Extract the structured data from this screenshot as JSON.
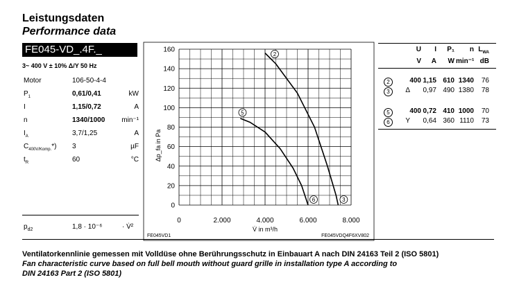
{
  "header": {
    "title": "Leistungsdaten",
    "subtitle": "Performance data",
    "model": "FE045-VD_.4F._",
    "supply": "3~ 400 V ± 10% Δ/Y 50 Hz"
  },
  "params": [
    {
      "label": "Motor",
      "value": "106-50-4-4",
      "unit": "",
      "bold": false
    },
    {
      "label": "P",
      "sub": "1",
      "value": "0,61/0,41",
      "unit": "kW",
      "bold": true
    },
    {
      "label": "I",
      "sub": "",
      "value": "1,15/0,72",
      "unit": "A",
      "bold": true
    },
    {
      "label": "n",
      "sub": "",
      "value": "1340/1000",
      "unit": "min⁻¹",
      "bold": true
    },
    {
      "label": "I",
      "sub": "A",
      "value": "3,7/1,25",
      "unit": "A",
      "bold": false
    },
    {
      "label": "C",
      "sub": "400V/Komp.",
      "suffix": "*)",
      "value": "3",
      "unit": "µF",
      "bold": false
    },
    {
      "label": "t",
      "sub": "R",
      "value": "60",
      "unit": "°C",
      "bold": false
    }
  ],
  "pd2": {
    "label": "p",
    "sub": "d2",
    "value": "1,8 · 10⁻⁶",
    "unit": "· V̇²"
  },
  "table": {
    "headers": [
      "U",
      "I",
      "P₁",
      "n",
      "L"
    ],
    "header_sub": "WA",
    "units": [
      "V",
      "A",
      "W",
      "min⁻¹",
      "dB"
    ],
    "rows": [
      {
        "marker": "2",
        "conn": "",
        "values": [
          "400",
          "1,15",
          "610",
          "1340",
          "76"
        ],
        "bold": true
      },
      {
        "marker": "3",
        "conn": "Δ",
        "values": [
          "",
          "0,97",
          "490",
          "1380",
          "78"
        ],
        "bold": false
      },
      {
        "marker": "5",
        "conn": "",
        "values": [
          "400",
          "0,72",
          "410",
          "1000",
          "70"
        ],
        "bold": true
      },
      {
        "marker": "6",
        "conn": "Y",
        "values": [
          "",
          "0,64",
          "360",
          "1110",
          "73"
        ],
        "bold": false
      }
    ]
  },
  "chart_data": {
    "type": "line",
    "xlabel": "V̇ in m³/h",
    "ylabel": "Δp_fa in Pa",
    "xlim": [
      0,
      8000
    ],
    "ylim": [
      0,
      160
    ],
    "xticks": [
      "0",
      "2.000",
      "4.000",
      "6.000",
      "8.000"
    ],
    "yticks": [
      "0",
      "20",
      "40",
      "60",
      "80",
      "100",
      "120",
      "140",
      "160"
    ],
    "grid": true,
    "code_left": "FE045VD1",
    "code_right": "FE045VDQ4F6XV802",
    "series": [
      {
        "name": "2",
        "points": [
          [
            4000,
            156
          ],
          [
            4500,
            145
          ],
          [
            5500,
            115
          ],
          [
            6300,
            80
          ],
          [
            6900,
            40
          ],
          [
            7300,
            10
          ],
          [
            7400,
            0
          ]
        ],
        "label_at": [
          4450,
          155
        ],
        "end_label": "3"
      },
      {
        "name": "5",
        "points": [
          [
            2850,
            89
          ],
          [
            3300,
            85
          ],
          [
            4000,
            75
          ],
          [
            4700,
            58
          ],
          [
            5300,
            38
          ],
          [
            5700,
            20
          ],
          [
            6000,
            0
          ]
        ],
        "label_at": [
          2950,
          95
        ],
        "end_label": "6"
      }
    ]
  },
  "notes": {
    "de": "Ventilatorkennlinie gemessen mit Volldüse ohne Berührungsschutz in Einbauart A nach DIN 24163 Teil 2 (ISO 5801)",
    "en1": "Fan characteristic curve based on full bell mouth without guard grille in installation type A according to",
    "en2": "DIN 24163 Part 2 (ISO 5801)"
  }
}
